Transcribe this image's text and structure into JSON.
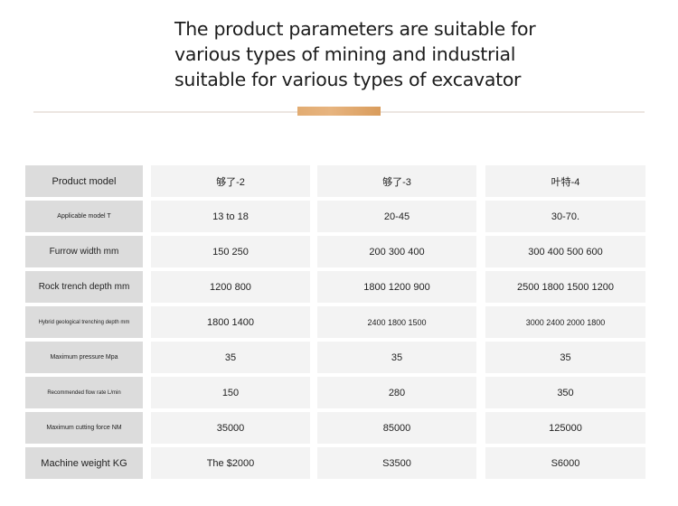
{
  "title_lines": [
    "The product parameters are suitable for",
    "various types of mining and industrial",
    "suitable for various types of excavator"
  ],
  "accent_color": "#e2ac72",
  "table": {
    "rows": [
      {
        "label": "Product model",
        "values": [
          "够了-2",
          "够了-3",
          "叶特-4"
        ]
      },
      {
        "label": "Applicable model T",
        "values": [
          "13 to 18",
          "20-45",
          "30-70."
        ]
      },
      {
        "label": "Furrow width mm",
        "values": [
          "150 250",
          "200 300 400",
          "300 400 500 600"
        ]
      },
      {
        "label": "Rock trench depth mm",
        "values": [
          "1200 800",
          "1800 1200 900",
          "2500 1800 1500 1200"
        ]
      },
      {
        "label": "Hybrid geological trenching depth mm",
        "values": [
          "1800 1400",
          "2400 1800 1500",
          "3000 2400 2000 1800"
        ]
      },
      {
        "label": "Maximum pressure Mpa",
        "values": [
          "35",
          "35",
          "35"
        ]
      },
      {
        "label": "Recommended flow rate L/min",
        "values": [
          "150",
          "280",
          "350"
        ]
      },
      {
        "label": "Maximum cutting force NM",
        "values": [
          "35000",
          "85000",
          "125000"
        ]
      },
      {
        "label": "Machine weight KG",
        "values": [
          "The $2000",
          "S3500",
          "S6000"
        ]
      }
    ]
  }
}
